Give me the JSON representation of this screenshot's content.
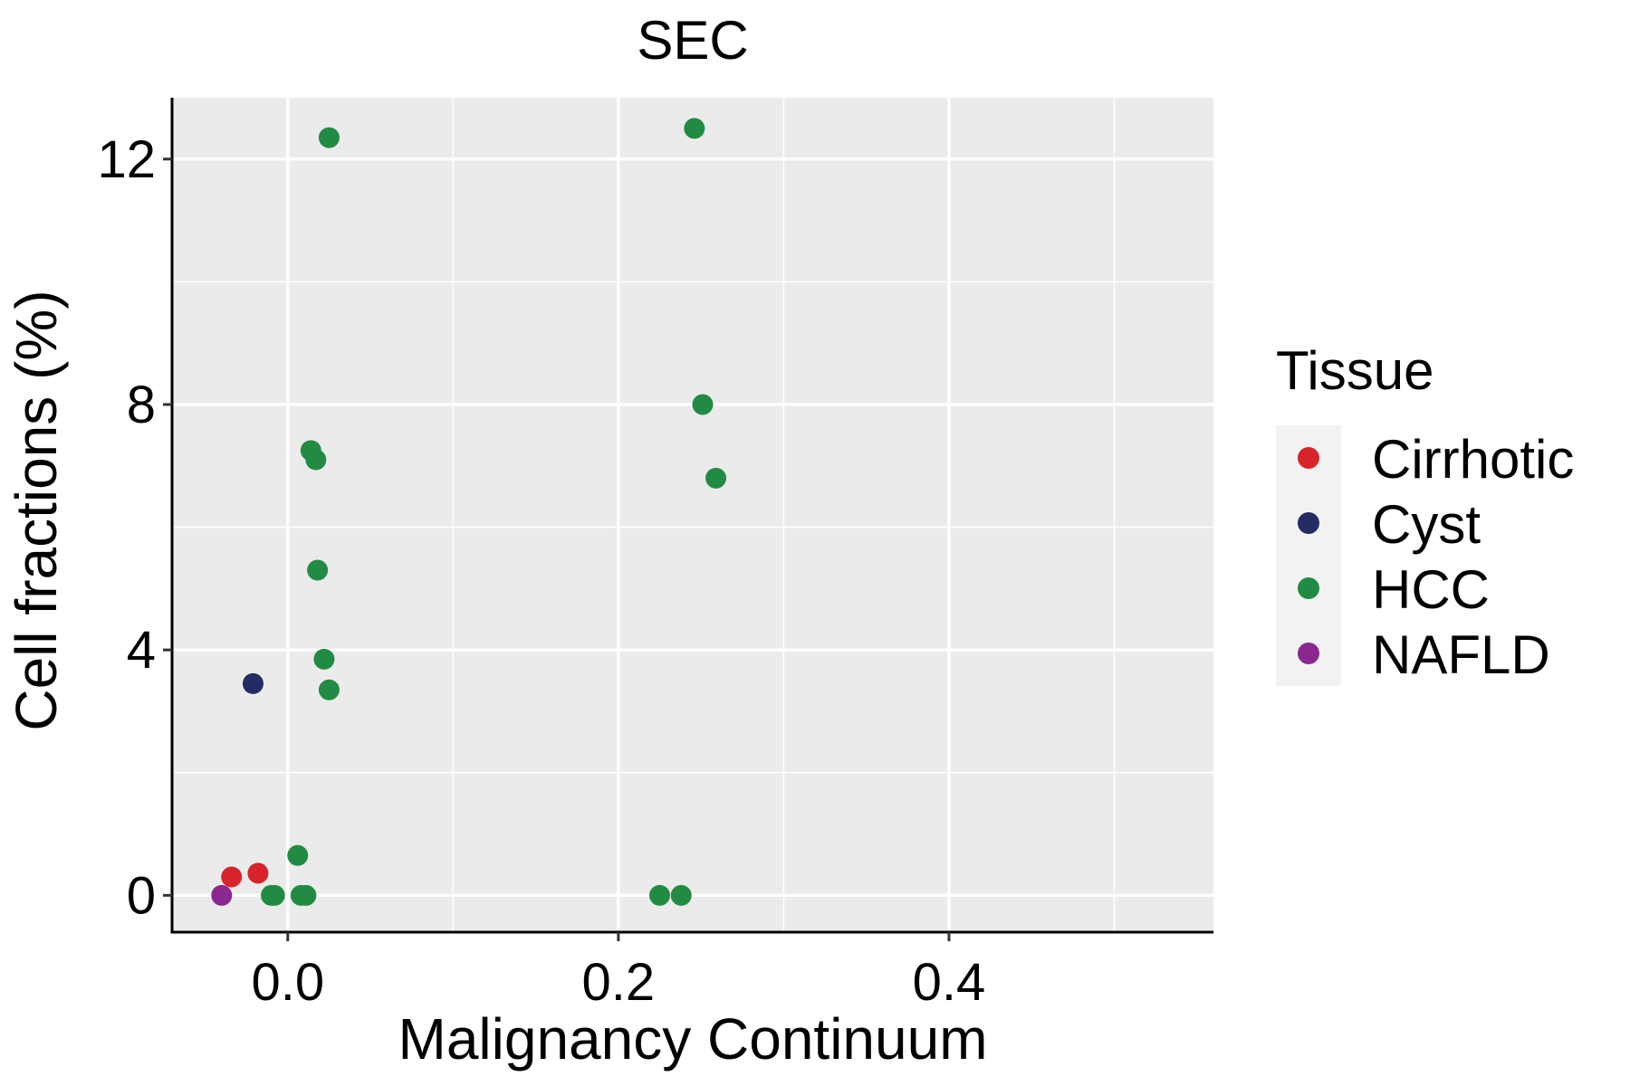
{
  "chart_data": {
    "type": "scatter",
    "title": "SEC",
    "xlabel": "Malignancy Continuum",
    "ylabel": "Cell fractions (%)",
    "xlim": [
      -0.07,
      0.56
    ],
    "ylim": [
      -0.6,
      13.0
    ],
    "x_ticks": [
      0.0,
      0.2,
      0.4
    ],
    "x_tick_labels": [
      "0.0",
      "0.2",
      "0.4"
    ],
    "x_minor_ticks": [
      0.1,
      0.3,
      0.5
    ],
    "y_ticks": [
      0,
      4,
      8,
      12
    ],
    "y_tick_labels": [
      "0",
      "4",
      "8",
      "12"
    ],
    "y_minor_ticks": [
      2,
      6,
      10
    ],
    "grid": true,
    "legend": {
      "title": "Tissue",
      "position": "right",
      "entries": [
        "Cirrhotic",
        "Cyst",
        "HCC",
        "NAFLD"
      ]
    },
    "colors": {
      "Cirrhotic": "#D7232A",
      "Cyst": "#252B63",
      "HCC": "#228B43",
      "NAFLD": "#8B2890",
      "panel": "#EBEBEB",
      "grid": "#FFFFFF",
      "legend_key_bg": "#F2F2F2"
    },
    "series": [
      {
        "name": "Cirrhotic",
        "x": [
          -0.034,
          -0.018
        ],
        "y": [
          0.3,
          0.36
        ]
      },
      {
        "name": "Cyst",
        "x": [
          -0.021
        ],
        "y": [
          3.45
        ]
      },
      {
        "name": "HCC",
        "x": [
          0.025,
          0.246,
          0.251,
          0.259,
          0.014,
          0.017,
          0.018,
          0.022,
          0.025,
          0.006,
          -0.01,
          -0.008,
          0.008,
          0.011,
          0.225,
          0.238
        ],
        "y": [
          12.35,
          12.5,
          8.0,
          6.8,
          7.25,
          7.1,
          5.3,
          3.85,
          3.35,
          0.65,
          0.0,
          0.0,
          0.0,
          0.0,
          0.0,
          0.0
        ]
      },
      {
        "name": "NAFLD",
        "x": [
          -0.04
        ],
        "y": [
          0.0
        ]
      }
    ]
  }
}
